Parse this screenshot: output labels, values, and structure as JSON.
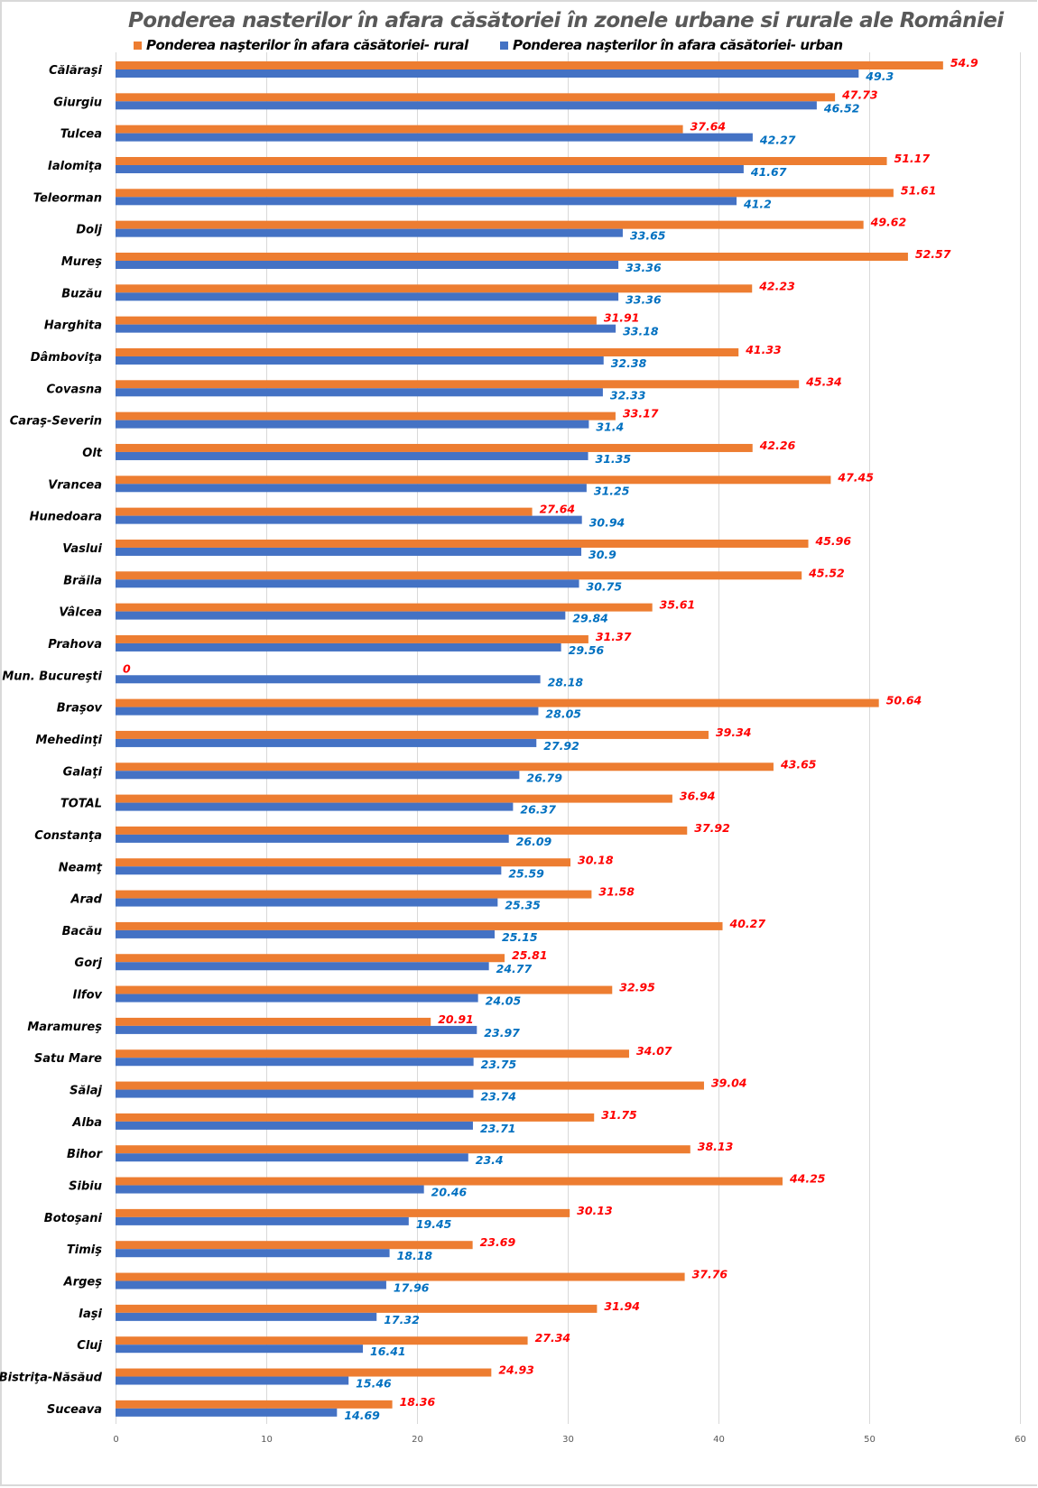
{
  "chart_data": {
    "type": "bar",
    "orientation": "horizontal",
    "title": "Ponderea nasterilor în afara căsătoriei în zonele urbane si rurale ale  României",
    "xlabel": "",
    "ylabel": "",
    "xlim": [
      0,
      60
    ],
    "x_ticks": [
      "0",
      "10",
      "20",
      "30",
      "40",
      "50",
      "60"
    ],
    "grid": true,
    "legend_position": "top",
    "colors": {
      "rural_bar": "#ED7D31",
      "urban_bar": "#4472C4",
      "rural_label": "#FF0000",
      "urban_label": "#0070C0",
      "grid": "#D9D9D9",
      "title": "#595959"
    },
    "categories": [
      "Călăraşi",
      "Giurgiu",
      "Tulcea",
      "Ialomiţa",
      "Teleorman",
      "Dolj",
      "Mureş",
      "Buzău",
      "Harghita",
      "Dâmboviţa",
      "Covasna",
      "Caraş-Severin",
      "Olt",
      "Vrancea",
      "Hunedoara",
      "Vaslui",
      "Brăila",
      "Vâlcea",
      "Prahova",
      "Mun. Bucureşti",
      "Braşov",
      "Mehedinţi",
      "Galaţi",
      "TOTAL",
      "Constanţa",
      "Neamţ",
      "Arad",
      "Bacău",
      "Gorj",
      "Ilfov",
      "Maramureş",
      "Satu Mare",
      "Sălaj",
      "Alba",
      "Bihor",
      "Sibiu",
      "Botoşani",
      "Timiş",
      "Argeş",
      "Iaşi",
      "Cluj",
      "Bistriţa-Năsăud",
      "Suceava"
    ],
    "series": [
      {
        "name": "Ponderea naşterilor în afara căsătoriei- rural",
        "values": [
          54.9,
          47.73,
          37.64,
          51.17,
          51.61,
          49.62,
          52.57,
          42.23,
          31.91,
          41.33,
          45.34,
          33.17,
          42.26,
          47.45,
          27.64,
          45.96,
          45.52,
          35.61,
          31.37,
          0,
          50.64,
          39.34,
          43.65,
          36.94,
          37.92,
          30.18,
          31.58,
          40.27,
          25.81,
          32.95,
          20.91,
          34.07,
          39.04,
          31.75,
          38.13,
          44.25,
          30.13,
          23.69,
          37.76,
          31.94,
          27.34,
          24.93,
          18.36
        ]
      },
      {
        "name": "Ponderea naşterilor în afara căsătoriei- urban",
        "values": [
          49.3,
          46.52,
          42.27,
          41.67,
          41.2,
          33.65,
          33.36,
          33.36,
          33.18,
          32.38,
          32.33,
          31.4,
          31.35,
          31.25,
          30.94,
          30.9,
          30.75,
          29.84,
          29.56,
          28.18,
          28.05,
          27.92,
          26.79,
          26.37,
          26.09,
          25.59,
          25.35,
          25.15,
          24.77,
          24.05,
          23.97,
          23.75,
          23.74,
          23.71,
          23.4,
          20.46,
          19.45,
          18.18,
          17.96,
          17.32,
          16.41,
          15.46,
          14.69
        ]
      }
    ]
  }
}
